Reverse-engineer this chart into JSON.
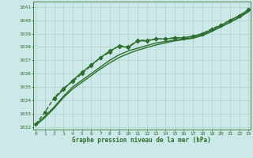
{
  "background_color": "#cce8e8",
  "grid_color": "#b0d0c8",
  "line_color": "#2d6e2d",
  "marker_color": "#2d6e2d",
  "xlabel": "Graphe pression niveau de la mer (hPa)",
  "xlabel_color": "#2d6e2d",
  "xlim": [
    -0.3,
    23.2
  ],
  "ylim": [
    1031.8,
    1041.4
  ],
  "yticks": [
    1032,
    1033,
    1034,
    1035,
    1036,
    1037,
    1038,
    1039,
    1040,
    1041
  ],
  "xticks": [
    0,
    1,
    2,
    3,
    4,
    5,
    6,
    7,
    8,
    9,
    10,
    11,
    12,
    13,
    14,
    15,
    16,
    17,
    18,
    19,
    20,
    21,
    22,
    23
  ],
  "series": [
    {
      "x": [
        0,
        1,
        2,
        3,
        4,
        5,
        6,
        7,
        8,
        9,
        10,
        11,
        12,
        13,
        14,
        15,
        16,
        17,
        18,
        19,
        20,
        21,
        22,
        23
      ],
      "y": [
        1032.2,
        1033.1,
        1034.2,
        1034.9,
        1035.4,
        1036.0,
        1036.6,
        1037.2,
        1037.6,
        1038.1,
        1038.0,
        1038.5,
        1038.5,
        1038.6,
        1038.6,
        1038.7,
        1038.7,
        1038.8,
        1039.0,
        1039.35,
        1039.65,
        1040.0,
        1040.35,
        1040.8
      ],
      "marker": "D",
      "markersize": 2.5,
      "linewidth": 1.0,
      "linestyle": "--"
    },
    {
      "x": [
        0,
        1,
        2,
        3,
        4,
        5,
        6,
        7,
        8,
        9,
        10,
        11,
        12,
        13,
        14,
        15,
        16,
        17,
        18,
        19,
        20,
        21,
        22,
        23
      ],
      "y": [
        1032.2,
        1032.8,
        1033.5,
        1034.3,
        1035.0,
        1035.5,
        1036.0,
        1036.5,
        1037.0,
        1037.4,
        1037.7,
        1037.9,
        1038.1,
        1038.3,
        1038.4,
        1038.5,
        1038.6,
        1038.7,
        1038.9,
        1039.2,
        1039.5,
        1039.85,
        1040.2,
        1040.65
      ],
      "marker": null,
      "markersize": 0,
      "linewidth": 1.0,
      "linestyle": "-"
    },
    {
      "x": [
        0,
        1,
        2,
        3,
        4,
        5,
        6,
        7,
        8,
        9,
        10,
        11,
        12,
        13,
        14,
        15,
        16,
        17,
        18,
        19,
        20,
        21,
        22,
        23
      ],
      "y": [
        1032.1,
        1032.7,
        1033.4,
        1034.2,
        1034.85,
        1035.35,
        1035.85,
        1036.35,
        1036.8,
        1037.2,
        1037.5,
        1037.75,
        1037.95,
        1038.15,
        1038.3,
        1038.45,
        1038.55,
        1038.65,
        1038.85,
        1039.15,
        1039.5,
        1039.85,
        1040.25,
        1040.7
      ],
      "marker": null,
      "markersize": 0,
      "linewidth": 1.0,
      "linestyle": "-"
    },
    {
      "x": [
        2,
        3,
        4,
        5,
        6,
        7,
        8,
        9,
        10,
        11,
        12,
        13,
        14,
        15,
        16,
        17,
        18,
        19,
        20,
        21,
        22,
        23
      ],
      "y": [
        1034.1,
        1034.8,
        1035.5,
        1036.1,
        1036.65,
        1037.2,
        1037.7,
        1038.05,
        1037.95,
        1038.45,
        1038.45,
        1038.6,
        1038.6,
        1038.65,
        1038.7,
        1038.8,
        1039.0,
        1039.3,
        1039.6,
        1040.0,
        1040.35,
        1040.8
      ],
      "marker": "D",
      "markersize": 2.5,
      "linewidth": 1.0,
      "linestyle": "-"
    }
  ]
}
